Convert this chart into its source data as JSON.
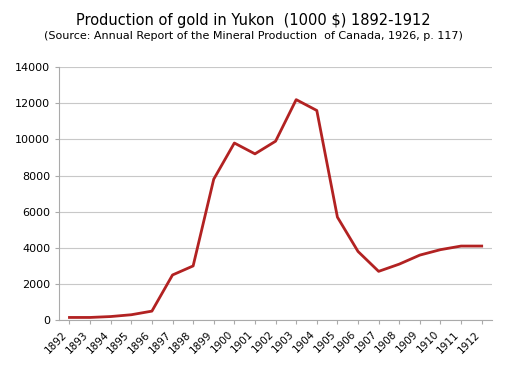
{
  "title": "Production of gold in Yukon  (1000 $) 1892-1912",
  "subtitle": "(Source: Annual Report of the Mineral Production  of Canada, 1926, p. 117)",
  "years": [
    1892,
    1893,
    1894,
    1895,
    1896,
    1897,
    1898,
    1899,
    1900,
    1901,
    1902,
    1903,
    1904,
    1905,
    1906,
    1907,
    1908,
    1909,
    1910,
    1911,
    1912
  ],
  "values": [
    150,
    150,
    200,
    300,
    500,
    2500,
    3000,
    7800,
    9800,
    9200,
    9900,
    12200,
    11600,
    5700,
    3800,
    2700,
    3100,
    3600,
    3900,
    4100,
    4100
  ],
  "line_color": "#b22222",
  "ylim": [
    0,
    14000
  ],
  "yticks": [
    0,
    2000,
    4000,
    6000,
    8000,
    10000,
    12000,
    14000
  ],
  "grid_color": "#c8c8c8",
  "bg_color": "#ffffff",
  "title_fontsize": 10.5,
  "subtitle_fontsize": 8.0
}
